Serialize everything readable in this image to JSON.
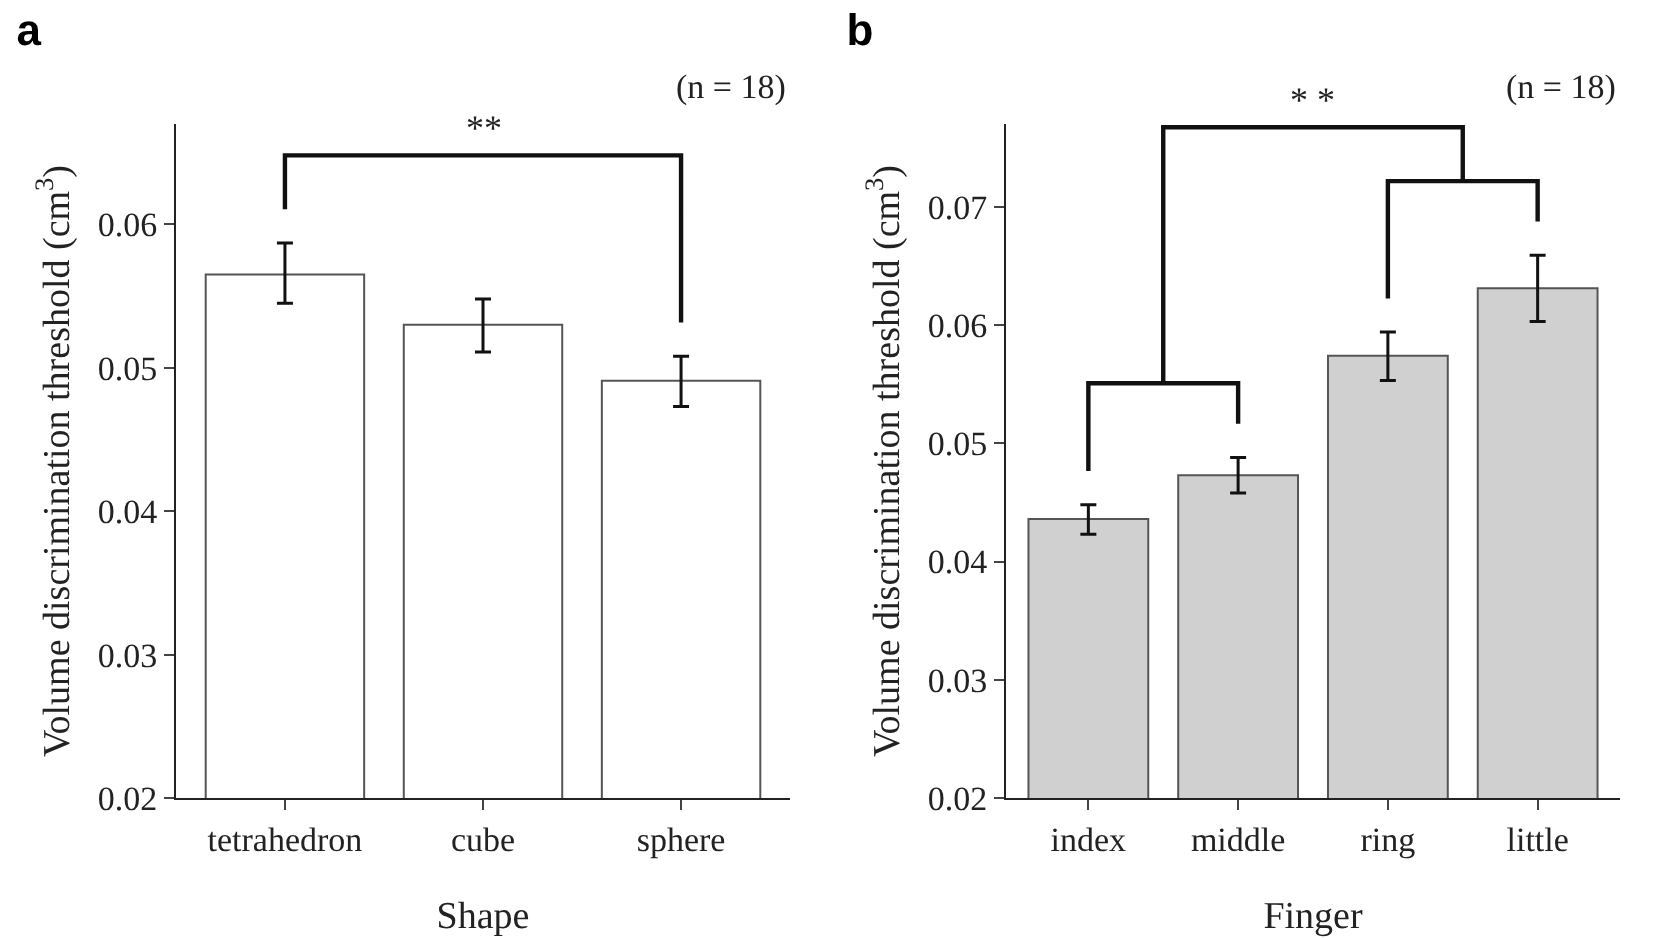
{
  "chart_data": [
    {
      "type": "bar",
      "title": "a",
      "xlabel": "Shape",
      "ylabel": "Volume discrimination threshold (cm$^{3}$)",
      "annotations": [
        "(n = 18)",
        "**"
      ],
      "categories": [
        "tetrahedron",
        "cube",
        "sphere"
      ],
      "values": [
        0.0565,
        0.053,
        0.0491
      ],
      "color": "#ffffff",
      "errors": [
        [
          0.0545,
          0.0587
        ],
        [
          0.0511,
          0.0548
        ],
        [
          0.0473,
          0.0508
        ]
      ],
      "ylim": [
        0.02,
        0.067
      ],
      "yticks": [
        0.02,
        0.03,
        0.04,
        0.05,
        0.06
      ]
    },
    {
      "type": "bar",
      "title": "b",
      "xlabel": "Finger",
      "ylabel": "Volume discrimination threshold (cm$^{3}$)",
      "annotations": [
        "(n = 18)",
        "* *"
      ],
      "categories": [
        "index",
        "middle",
        "ring",
        "little"
      ],
      "values": [
        0.0436,
        0.0473,
        0.0574,
        0.0631
      ],
      "color": "#d0d0d0",
      "errors": [
        [
          0.0423,
          0.0448
        ],
        [
          0.0458,
          0.0488
        ],
        [
          0.0553,
          0.0594
        ],
        [
          0.0603,
          0.0659
        ]
      ],
      "ylim": [
        0.02,
        0.077
      ],
      "yticks": [
        0.02,
        0.03,
        0.04,
        0.05,
        0.06,
        0.07
      ]
    }
  ]
}
